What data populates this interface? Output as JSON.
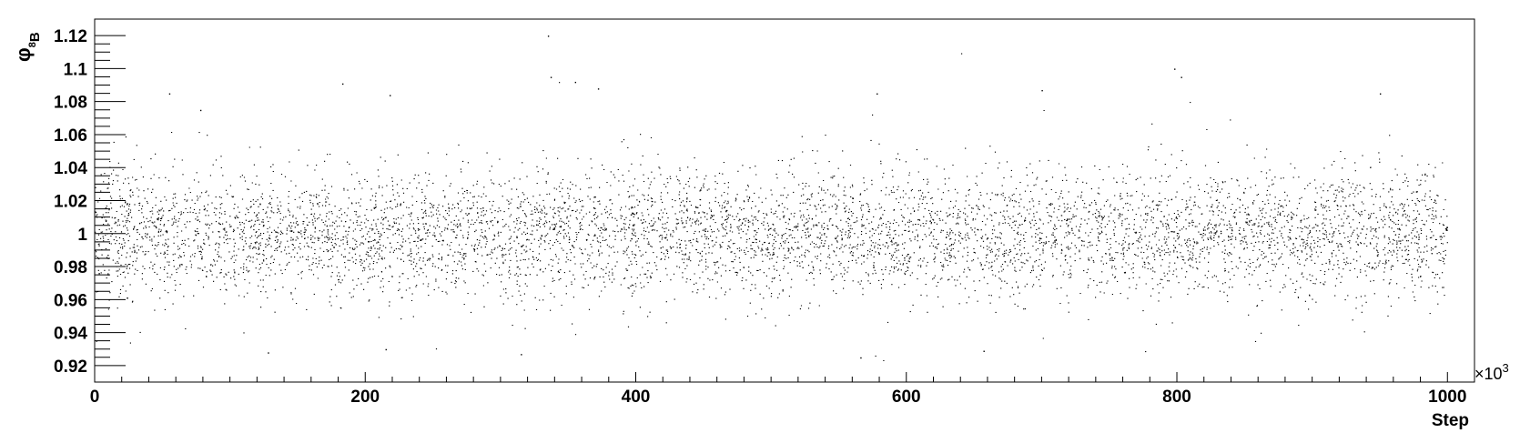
{
  "chart_data": {
    "type": "scatter",
    "title": "",
    "xlabel": "Step",
    "x_multiplier_label": "×10",
    "x_multiplier_exponent": "3",
    "ylabel": "φ",
    "ylabel_superscript": "8",
    "ylabel_subscript": "B",
    "xlim": [
      0,
      1020
    ],
    "ylim": [
      0.91,
      1.13
    ],
    "x_ticks": [
      0,
      200,
      400,
      600,
      800,
      1000
    ],
    "x_tick_labels": [
      "0",
      "200",
      "400",
      "600",
      "800",
      "1000"
    ],
    "y_ticks": [
      0.92,
      0.94,
      0.96,
      0.98,
      1.0,
      1.02,
      1.04,
      1.06,
      1.08,
      1.1,
      1.12
    ],
    "y_tick_labels": [
      "0.92",
      "0.94",
      "0.96",
      "0.98",
      "1",
      "1.02",
      "1.04",
      "1.06",
      "1.08",
      "1.1",
      "1.12"
    ],
    "grid": false,
    "series_summary": {
      "x_start": 0,
      "x_end": 1000,
      "center": 1.0,
      "spread_sd": 0.018,
      "min_observed": 0.925,
      "max_observed": 1.12
    },
    "sample_points": [
      {
        "x": 5,
        "y": 1.01
      },
      {
        "x": 55,
        "y": 1.085
      },
      {
        "x": 78,
        "y": 1.075
      },
      {
        "x": 128,
        "y": 0.928
      },
      {
        "x": 183,
        "y": 1.091
      },
      {
        "x": 215,
        "y": 0.93
      },
      {
        "x": 218,
        "y": 1.084
      },
      {
        "x": 315,
        "y": 0.927
      },
      {
        "x": 335,
        "y": 1.12
      },
      {
        "x": 337,
        "y": 1.095
      },
      {
        "x": 355,
        "y": 1.092
      },
      {
        "x": 372,
        "y": 1.088
      },
      {
        "x": 566,
        "y": 0.925
      },
      {
        "x": 578,
        "y": 1.085
      },
      {
        "x": 657,
        "y": 0.929
      },
      {
        "x": 700,
        "y": 1.087
      },
      {
        "x": 798,
        "y": 1.1
      },
      {
        "x": 803,
        "y": 1.095
      },
      {
        "x": 950,
        "y": 1.085
      },
      {
        "x": 997,
        "y": 0.985
      }
    ],
    "mark_color": "#000000"
  }
}
